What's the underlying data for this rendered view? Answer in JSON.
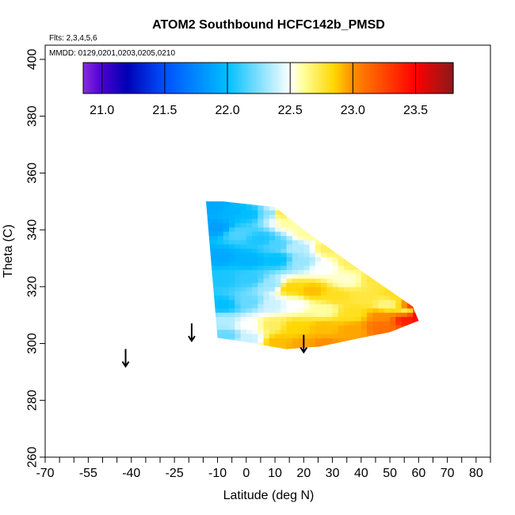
{
  "chart_data": {
    "type": "heatmap",
    "title": "ATOM2 Southbound HCFC142b_PMSD",
    "flights_label": "Flts: 2,3,4,5,6",
    "dates_label": "MMDD: 0129,0201,0203,0205,0210",
    "xlabel": "Latitude (deg N)",
    "ylabel": "Theta (C)",
    "xlim": [
      -70,
      85
    ],
    "ylim": [
      260,
      405
    ],
    "x_ticks": [
      -70,
      -55,
      -40,
      -25,
      -10,
      0,
      10,
      20,
      30,
      40,
      50,
      60,
      70,
      80
    ],
    "x_minor_ticks": [
      -65,
      -60,
      -50,
      -45,
      -35,
      -30,
      -20,
      -15,
      -5,
      5,
      15,
      25,
      35,
      45,
      55,
      65,
      75,
      85
    ],
    "y_ticks": [
      260,
      280,
      300,
      320,
      340,
      360,
      380,
      400
    ],
    "colorbar": {
      "min": 20.85,
      "max": 23.8,
      "ticks": [
        21.0,
        21.5,
        22.0,
        22.5,
        23.0,
        23.5
      ],
      "tick_labels": [
        "21.0",
        "21.5",
        "22.0",
        "22.5",
        "23.0",
        "23.5"
      ],
      "stops": [
        {
          "v": 20.85,
          "c": "#8a2be2"
        },
        {
          "v": 21.0,
          "c": "#4b00d0"
        },
        {
          "v": 21.2,
          "c": "#0000b4"
        },
        {
          "v": 21.5,
          "c": "#0050ff"
        },
        {
          "v": 22.0,
          "c": "#00bfff"
        },
        {
          "v": 22.5,
          "c": "#ffffff"
        },
        {
          "v": 22.6,
          "c": "#ffffa0"
        },
        {
          "v": 22.85,
          "c": "#ffd700"
        },
        {
          "v": 23.0,
          "c": "#ff8c00"
        },
        {
          "v": 23.5,
          "c": "#ff0000"
        },
        {
          "v": 23.8,
          "c": "#8b1a1a"
        }
      ]
    },
    "arrows_at": [
      {
        "lat": -42,
        "theta": 295
      },
      {
        "lat": -19,
        "theta": 304
      },
      {
        "lat": 20,
        "theta": 300
      }
    ],
    "field_outline": [
      [
        -14,
        350
      ],
      [
        -8,
        350
      ],
      [
        10,
        348
      ],
      [
        20,
        340
      ],
      [
        38,
        327
      ],
      [
        58,
        313
      ],
      [
        60,
        308
      ],
      [
        50,
        304
      ],
      [
        40,
        302
      ],
      [
        26,
        299
      ],
      [
        14,
        298
      ],
      [
        -3,
        301
      ],
      [
        -10,
        302
      ]
    ],
    "field_samples": [
      {
        "lat": -12,
        "theta": 347,
        "v": 21.9
      },
      {
        "lat": -6,
        "theta": 346,
        "v": 21.95
      },
      {
        "lat": 0,
        "theta": 345,
        "v": 22.0
      },
      {
        "lat": 8,
        "theta": 345,
        "v": 22.2
      },
      {
        "lat": 10,
        "theta": 345,
        "v": 22.8
      },
      {
        "lat": 14,
        "theta": 342,
        "v": 22.6
      },
      {
        "lat": 20,
        "theta": 338,
        "v": 22.6
      },
      {
        "lat": 28,
        "theta": 333,
        "v": 22.7
      },
      {
        "lat": 36,
        "theta": 328,
        "v": 22.7
      },
      {
        "lat": 44,
        "theta": 322,
        "v": 22.75
      },
      {
        "lat": 52,
        "theta": 317,
        "v": 22.8
      },
      {
        "lat": 57,
        "theta": 312,
        "v": 23.3
      },
      {
        "lat": 59,
        "theta": 309,
        "v": 23.5
      },
      {
        "lat": -11,
        "theta": 340,
        "v": 21.85
      },
      {
        "lat": -4,
        "theta": 338,
        "v": 22.15
      },
      {
        "lat": 4,
        "theta": 336,
        "v": 22.05
      },
      {
        "lat": 10,
        "theta": 334,
        "v": 22.15
      },
      {
        "lat": 16,
        "theta": 333,
        "v": 22.35
      },
      {
        "lat": -10,
        "theta": 330,
        "v": 21.9
      },
      {
        "lat": 0,
        "theta": 329,
        "v": 21.95
      },
      {
        "lat": 10,
        "theta": 329,
        "v": 22.0
      },
      {
        "lat": 18,
        "theta": 328,
        "v": 22.3
      },
      {
        "lat": 26,
        "theta": 326,
        "v": 22.5
      },
      {
        "lat": 34,
        "theta": 322,
        "v": 22.55
      },
      {
        "lat": -9,
        "theta": 322,
        "v": 22.05
      },
      {
        "lat": 0,
        "theta": 322,
        "v": 22.1
      },
      {
        "lat": 8,
        "theta": 320,
        "v": 22.3
      },
      {
        "lat": 14,
        "theta": 319,
        "v": 22.85
      },
      {
        "lat": 22,
        "theta": 318,
        "v": 22.9
      },
      {
        "lat": 30,
        "theta": 316,
        "v": 22.8
      },
      {
        "lat": 40,
        "theta": 315,
        "v": 22.75
      },
      {
        "lat": 48,
        "theta": 313,
        "v": 22.65
      },
      {
        "lat": 55,
        "theta": 311,
        "v": 22.7
      },
      {
        "lat": -9,
        "theta": 313,
        "v": 22.0
      },
      {
        "lat": 0,
        "theta": 314,
        "v": 22.2
      },
      {
        "lat": 8,
        "theta": 313,
        "v": 22.4
      },
      {
        "lat": 16,
        "theta": 313,
        "v": 22.5
      },
      {
        "lat": 26,
        "theta": 311,
        "v": 22.6
      },
      {
        "lat": 36,
        "theta": 310,
        "v": 22.8
      },
      {
        "lat": 46,
        "theta": 309,
        "v": 23.0
      },
      {
        "lat": 55,
        "theta": 308,
        "v": 23.4
      },
      {
        "lat": -9,
        "theta": 307,
        "v": 22.35
      },
      {
        "lat": 0,
        "theta": 306,
        "v": 22.5
      },
      {
        "lat": 8,
        "theta": 306,
        "v": 22.7
      },
      {
        "lat": 16,
        "theta": 305,
        "v": 22.85
      },
      {
        "lat": 26,
        "theta": 305,
        "v": 22.9
      },
      {
        "lat": 36,
        "theta": 304,
        "v": 22.95
      },
      {
        "lat": 46,
        "theta": 305,
        "v": 23.1
      },
      {
        "lat": -8,
        "theta": 302,
        "v": 22.2
      },
      {
        "lat": 0,
        "theta": 301,
        "v": 22.4
      },
      {
        "lat": 10,
        "theta": 300,
        "v": 22.9
      },
      {
        "lat": 18,
        "theta": 299,
        "v": 22.95
      },
      {
        "lat": 26,
        "theta": 299,
        "v": 23.0
      }
    ]
  }
}
